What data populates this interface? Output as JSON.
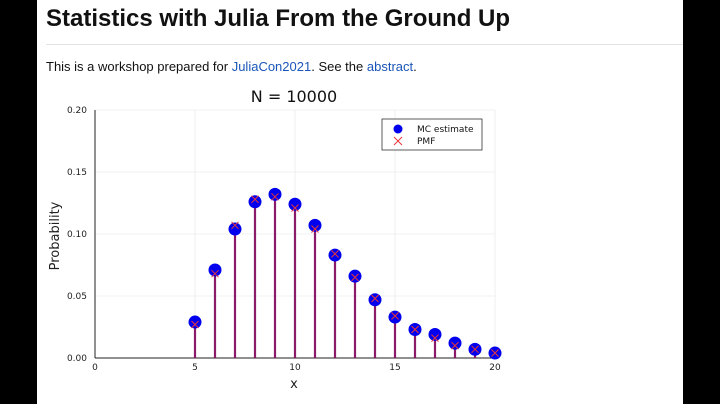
{
  "page": {
    "title": "Statistics with Julia From the Ground Up",
    "intro_prefix": "This is a workshop prepared for ",
    "link_juliacon": "JuliaCon2021",
    "intro_mid": ". See the ",
    "link_abstract": "abstract",
    "intro_suffix": "."
  },
  "colors": {
    "marker": "#0000ee",
    "stem": "#8b1a6b",
    "pmf": "#e8363a",
    "link": "#1a56b8"
  },
  "chart_data": {
    "type": "scatter",
    "title": "N = 10000",
    "xlabel": "x",
    "ylabel": "Probability",
    "xlim": [
      0,
      20
    ],
    "ylim": [
      0,
      0.2
    ],
    "xticks": [
      "0",
      "5",
      "10",
      "15",
      "20"
    ],
    "yticks": [
      "0.00",
      "0.05",
      "0.10",
      "0.15",
      "0.20"
    ],
    "legend_position": "top-right",
    "grid": true,
    "series": [
      {
        "name": "MC estimate",
        "marker": "circle",
        "x": [
          5,
          6,
          7,
          8,
          9,
          10,
          11,
          12,
          13,
          14,
          15,
          16,
          17,
          18,
          19,
          20
        ],
        "y": [
          0.029,
          0.071,
          0.104,
          0.126,
          0.132,
          0.124,
          0.107,
          0.083,
          0.066,
          0.047,
          0.033,
          0.023,
          0.019,
          0.012,
          0.007,
          0.004
        ]
      },
      {
        "name": "PMF",
        "marker": "x",
        "x": [
          5,
          6,
          7,
          8,
          9,
          10,
          11,
          12,
          13,
          14,
          15,
          16,
          17,
          18,
          19,
          20
        ],
        "y": [
          0.027,
          0.068,
          0.107,
          0.128,
          0.13,
          0.121,
          0.104,
          0.084,
          0.065,
          0.048,
          0.034,
          0.023,
          0.016,
          0.01,
          0.007,
          0.004
        ]
      }
    ]
  }
}
